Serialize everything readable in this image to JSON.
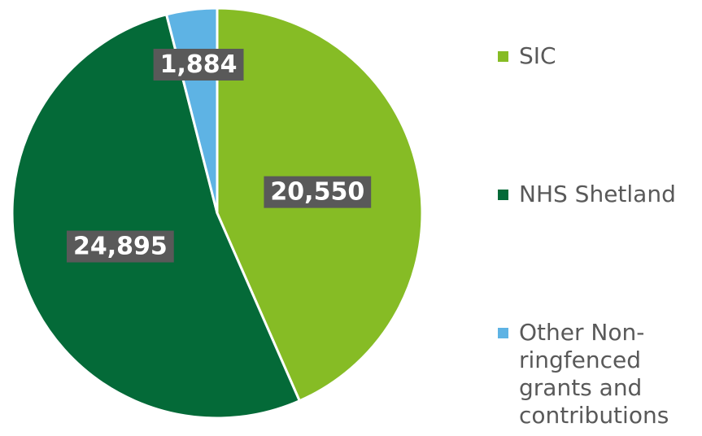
{
  "chart_data": {
    "type": "pie",
    "categories": [
      "SIC",
      "NHS Shetland",
      "Other Non-ringfenced grants and contributions"
    ],
    "values": [
      20550,
      24895,
      1884
    ],
    "value_labels": [
      "20,550",
      "24,895",
      "1,884"
    ],
    "colors": [
      "#86bc25",
      "#046a38",
      "#5eb3e4"
    ],
    "legend": "right"
  }
}
